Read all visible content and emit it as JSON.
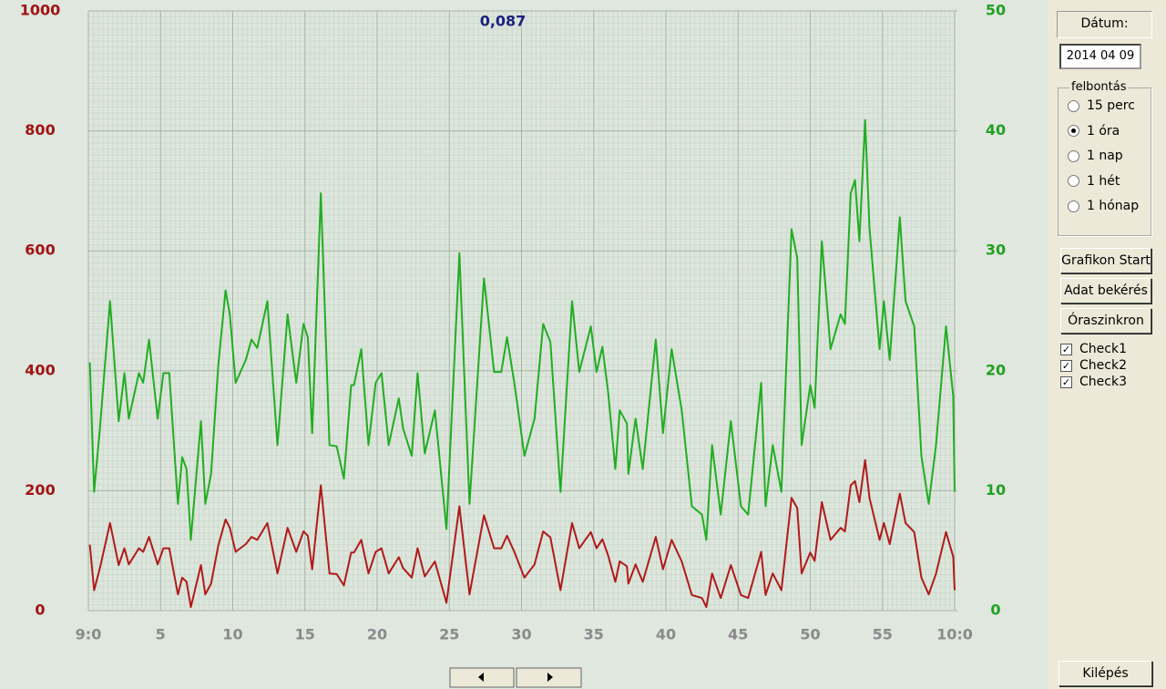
{
  "chart_data": {
    "type": "line",
    "annotation": "0,087",
    "x": [
      0.1,
      0.4,
      0.8,
      1.5,
      2.1,
      2.5,
      2.8,
      3.5,
      3.8,
      4.2,
      4.8,
      5.2,
      5.6,
      6.2,
      6.5,
      6.8,
      7.1,
      7.8,
      8.1,
      8.5,
      9.0,
      9.5,
      9.8,
      10.2,
      10.9,
      11.3,
      11.7,
      12.4,
      13.1,
      13.8,
      14.4,
      14.9,
      15.2,
      15.5,
      16.1,
      16.7,
      17.2,
      17.7,
      18.2,
      18.4,
      18.9,
      19.4,
      19.9,
      20.3,
      20.8,
      21.5,
      21.8,
      22.4,
      22.8,
      23.3,
      24.0,
      24.8,
      25.7,
      26.4,
      27.4,
      28.1,
      28.6,
      29.0,
      29.5,
      30.2,
      30.9,
      31.5,
      32.0,
      32.7,
      33.5,
      34.0,
      34.8,
      35.2,
      35.6,
      36.0,
      36.5,
      36.8,
      37.3,
      37.4,
      37.9,
      38.4,
      39.3,
      39.8,
      40.4,
      41.1,
      41.8,
      42.5,
      42.8,
      43.2,
      43.8,
      44.5,
      45.2,
      45.7,
      46.6,
      46.9,
      47.4,
      48.0,
      48.7,
      49.1,
      49.4,
      50.0,
      50.3,
      50.8,
      51.4,
      52.1,
      52.4,
      52.8,
      53.1,
      53.4,
      53.8,
      54.1,
      54.8,
      55.1,
      55.5,
      56.2,
      56.6,
      57.2,
      57.7,
      58.2,
      58.7,
      59.4,
      59.9,
      60.0
    ],
    "series": [
      {
        "color": "#22ad22",
        "axis": "y2",
        "values": [
          20.7,
          9.9,
          15.2,
          25.8,
          15.8,
          19.8,
          16.0,
          19.8,
          19.0,
          22.6,
          16.0,
          19.8,
          19.8,
          8.9,
          12.8,
          11.8,
          5.9,
          15.8,
          8.9,
          11.4,
          20.5,
          26.7,
          24.7,
          19.0,
          20.9,
          22.6,
          21.9,
          25.8,
          13.8,
          24.7,
          19.0,
          23.9,
          22.8,
          14.8,
          34.8,
          13.8,
          13.7,
          11.0,
          18.8,
          18.8,
          21.8,
          13.8,
          19.0,
          19.8,
          13.8,
          17.7,
          15.2,
          12.9,
          19.8,
          13.1,
          16.7,
          6.8,
          29.8,
          8.9,
          27.7,
          19.9,
          19.9,
          22.8,
          19.0,
          12.9,
          16.0,
          23.9,
          22.4,
          9.9,
          25.8,
          19.9,
          23.7,
          19.9,
          22.0,
          18.2,
          11.8,
          16.7,
          15.6,
          11.4,
          16.0,
          11.8,
          22.6,
          14.8,
          21.8,
          16.7,
          8.7,
          8.0,
          5.9,
          13.8,
          8.0,
          15.8,
          8.7,
          8.0,
          19.0,
          8.7,
          13.8,
          9.9,
          31.8,
          29.4,
          13.8,
          18.8,
          16.9,
          30.8,
          21.8,
          24.7,
          23.9,
          34.8,
          35.9,
          30.8,
          40.9,
          31.9,
          21.8,
          25.8,
          20.9,
          32.8,
          25.8,
          23.7,
          12.9,
          8.9,
          13.7,
          23.7,
          17.9,
          9.9
        ]
      },
      {
        "color": "#b01a1a",
        "values": [
          110,
          34,
          71,
          146,
          76,
          104,
          77,
          104,
          98,
          123,
          77,
          104,
          104,
          27,
          55,
          48,
          6,
          76,
          27,
          45,
          109,
          152,
          138,
          98,
          111,
          123,
          118,
          146,
          62,
          138,
          98,
          132,
          125,
          69,
          209,
          62,
          61,
          42,
          97,
          97,
          118,
          62,
          98,
          104,
          62,
          89,
          71,
          55,
          104,
          57,
          82,
          13,
          174,
          27,
          159,
          104,
          104,
          125,
          98,
          55,
          77,
          132,
          122,
          34,
          146,
          104,
          131,
          104,
          119,
          92,
          48,
          82,
          74,
          45,
          77,
          48,
          123,
          69,
          118,
          82,
          26,
          21,
          6,
          62,
          21,
          76,
          26,
          21,
          98,
          26,
          62,
          34,
          188,
          171,
          62,
          97,
          83,
          181,
          118,
          138,
          132,
          209,
          216,
          181,
          251,
          188,
          118,
          146,
          111,
          195,
          146,
          131,
          55,
          27,
          61,
          131,
          90,
          34
        ]
      }
    ],
    "xlim": [
      0,
      60
    ],
    "xticks": [
      {
        "value": 0,
        "label": "9:0"
      },
      5,
      10,
      15,
      20,
      25,
      30,
      35,
      40,
      45,
      50,
      55,
      {
        "value": 60,
        "label": "10:0"
      }
    ],
    "ylim": [
      0,
      1000
    ],
    "yticks": [
      0,
      200,
      400,
      600,
      800,
      1000
    ],
    "ycolor": "#a01414",
    "y2lim": [
      0,
      50
    ],
    "y2ticks": [
      0,
      10,
      20,
      30,
      40,
      50
    ],
    "y2color": "#22a022",
    "grid": true
  },
  "panel": {
    "date_label": "Dátum:",
    "date": "2014 04 09",
    "resolution": {
      "title": "felbontás",
      "options": [
        "15 perc",
        "1 óra",
        "1 nap",
        "1 hét",
        "1 hónap"
      ],
      "selected": 1
    },
    "buttons": [
      "Grafikon Start",
      "Adat bekérés",
      "Óraszinkron"
    ],
    "checks": [
      {
        "label": "Check1",
        "checked": true
      },
      {
        "label": "Check2",
        "checked": true
      },
      {
        "label": "Check3",
        "checked": true
      }
    ],
    "exit": "Kilépés"
  }
}
